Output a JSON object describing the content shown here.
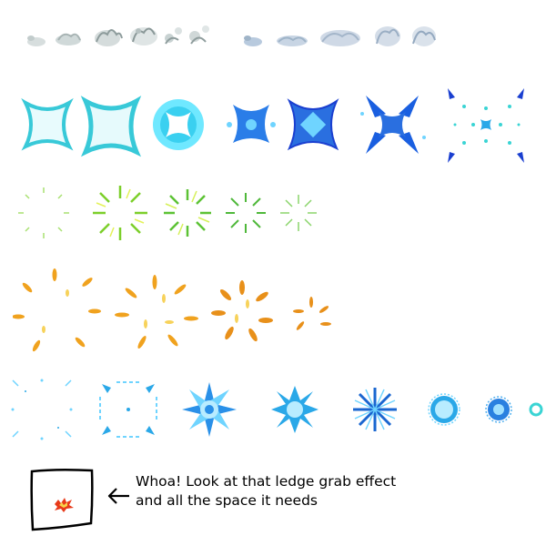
{
  "sheet": {
    "rows": [
      {
        "name": "smoke-puffs",
        "frames": 10,
        "colors": [
          "#c9d3d3",
          "#9fb4c8",
          "#e6ecef"
        ]
      },
      {
        "name": "star-burst",
        "frames": 7,
        "colors": [
          "#38c9d8",
          "#2a7de8",
          "#1a3fd0",
          "#6fe8ff"
        ]
      },
      {
        "name": "green-sparkle-ring",
        "frames": 5,
        "colors": [
          "#6ad13a",
          "#d6f05a",
          "#2ea84a"
        ]
      },
      {
        "name": "orange-sparkle-burst",
        "frames": 4,
        "colors": [
          "#f0a21e",
          "#f7d25a",
          "#d86a10"
        ]
      },
      {
        "name": "ice-shatter",
        "frames": 8,
        "colors": [
          "#2aa8e8",
          "#6fd4ff",
          "#1a66d0",
          "#3ad4d4"
        ]
      }
    ]
  },
  "annotation": {
    "line1": "Whoa! Look at that ledge grab effect",
    "line2": "and all the space it needs",
    "arrow_icon": "hand-drawn-arrow-left-icon",
    "sprite_icon": "ledge-grab-spark-icon",
    "colors": {
      "ink": "#000000",
      "spark_outer": "#e83a1a",
      "spark_inner": "#f7d24a"
    }
  }
}
